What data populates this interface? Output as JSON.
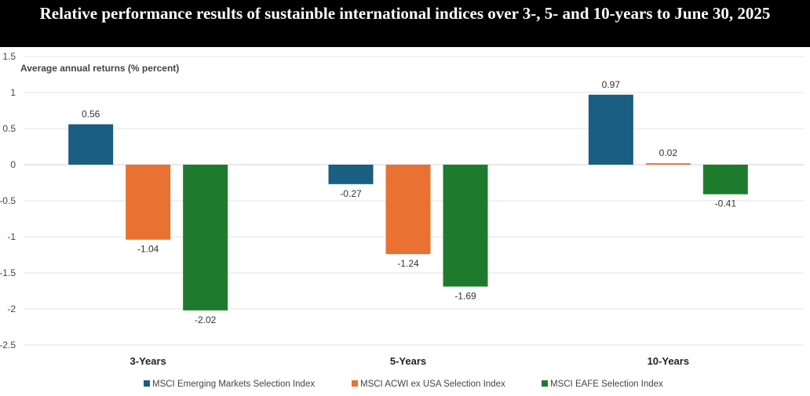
{
  "chart_data": {
    "type": "bar",
    "title": "Relative performance results of sustainble international indices over 3-, 5- and 10-years to June 30, 2025",
    "ylabel": "Average annual returns (% percent)",
    "xlabel": "",
    "categories": [
      "3-Years",
      "5-Years",
      "10-Years"
    ],
    "ylim": [
      -2.5,
      1.5
    ],
    "yticks": [
      1.5,
      1,
      0.5,
      0,
      -0.5,
      -1,
      -1.5,
      -2,
      -2.5
    ],
    "grid": true,
    "legend_position": "bottom",
    "series": [
      {
        "name": "MSCI Emerging Markets Selection Index",
        "color": "#1a5e82",
        "values": [
          0.56,
          -0.27,
          0.97
        ]
      },
      {
        "name": "MSCI ACWI ex USA Selection Index",
        "color": "#e97132",
        "values": [
          -1.04,
          -1.24,
          0.02
        ]
      },
      {
        "name": "MSCI EAFE Selection Index",
        "color": "#1e7b2e",
        "values": [
          -2.02,
          -1.69,
          -0.41
        ]
      }
    ]
  }
}
